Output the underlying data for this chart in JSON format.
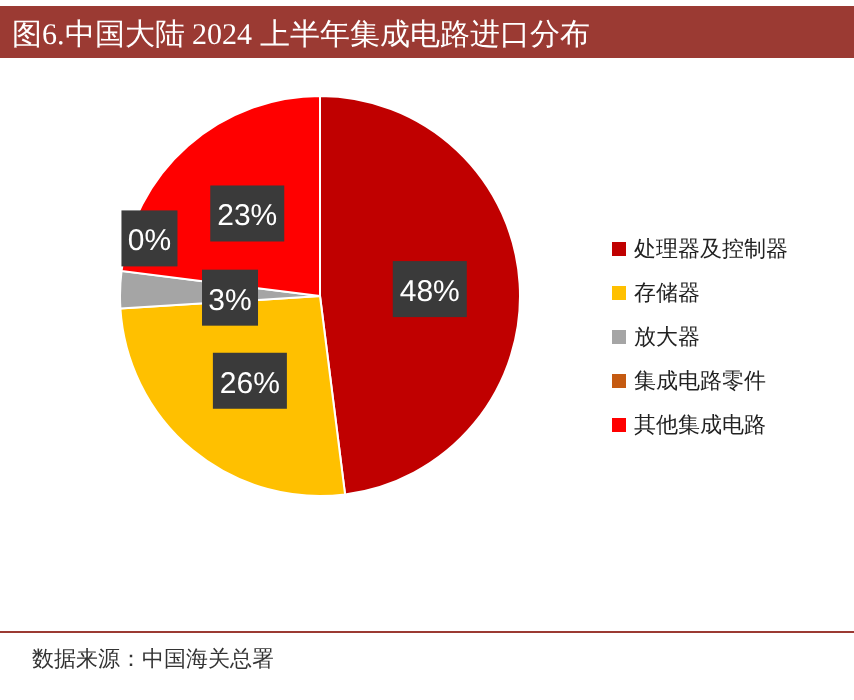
{
  "chart_data": {
    "type": "pie",
    "title": "图6.中国大陆 2024 上半年集成电路进口分布",
    "categories": [
      "处理器及控制器",
      "存储器",
      "放大器",
      "集成电路零件",
      "其他集成电路"
    ],
    "values": [
      48,
      26,
      3,
      0,
      23
    ],
    "value_labels": [
      "48%",
      "26%",
      "3%",
      "0%",
      "23%"
    ],
    "colors": [
      "#c00000",
      "#ffc000",
      "#a5a5a5",
      "#c55a11",
      "#ff0000"
    ],
    "legend": "right",
    "annotations": [
      "数据来源：中国海关总署"
    ]
  }
}
